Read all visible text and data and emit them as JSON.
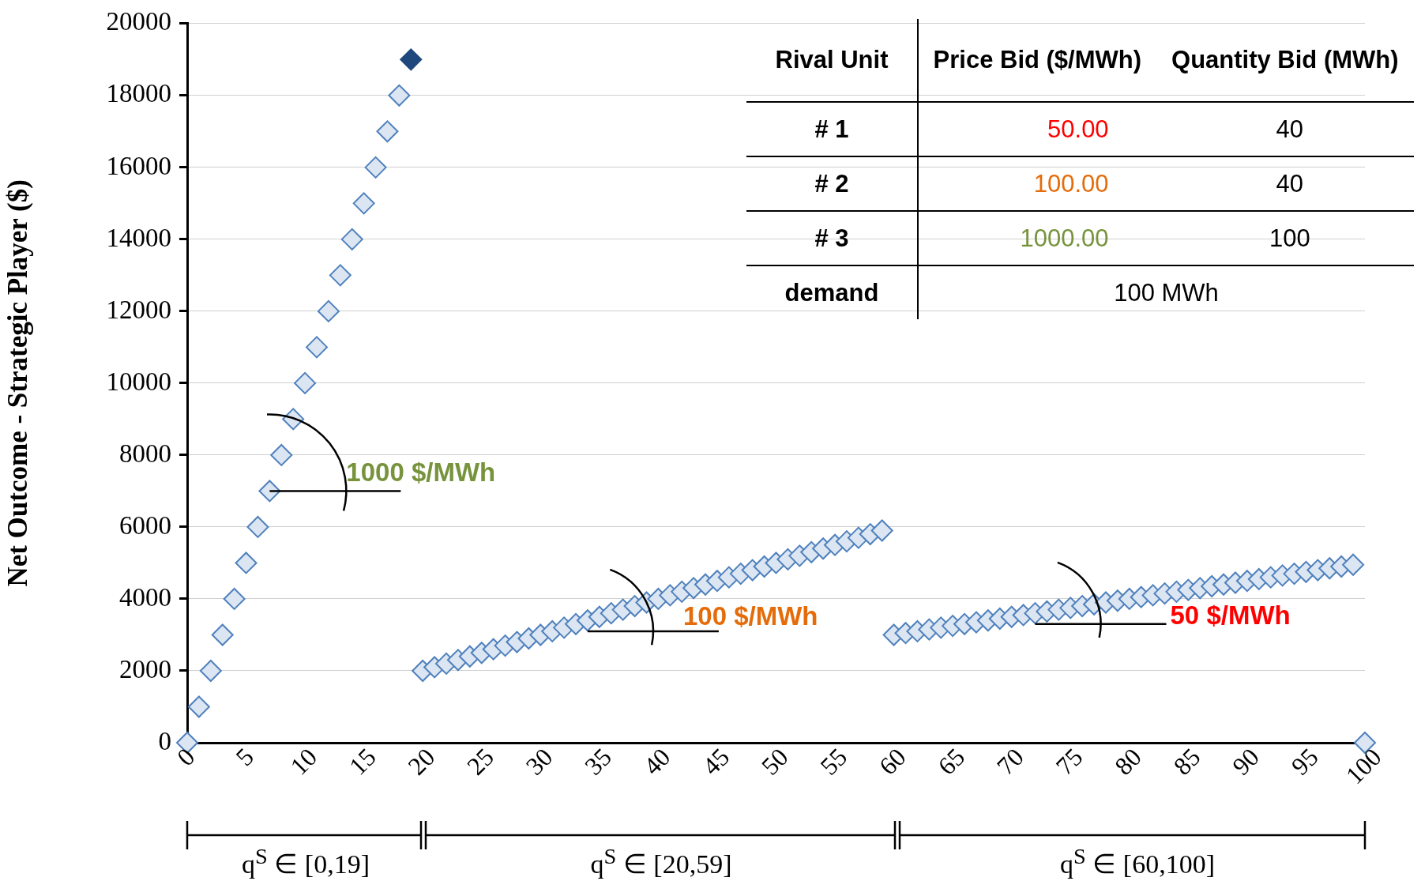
{
  "chart_data": {
    "type": "scatter",
    "ylabel": "Net Outcome - Strategic Player ($)",
    "xlim": [
      0,
      100
    ],
    "xticks": [
      0,
      5,
      10,
      15,
      20,
      25,
      30,
      35,
      40,
      45,
      50,
      55,
      60,
      65,
      70,
      75,
      80,
      85,
      90,
      95,
      100
    ],
    "ylim": [
      0,
      20000
    ],
    "yticks": [
      0,
      2000,
      4000,
      6000,
      8000,
      10000,
      12000,
      14000,
      16000,
      18000,
      20000
    ],
    "grid": "y",
    "legend": false,
    "marker": "diamond",
    "series": [
      {
        "color": "#dce6f2",
        "x": [
          0,
          1,
          2,
          3,
          4,
          5,
          6,
          7,
          8,
          9,
          10,
          11,
          12,
          13,
          14,
          15,
          16,
          17,
          18,
          20,
          21,
          22,
          23,
          24,
          25,
          26,
          27,
          28,
          29,
          30,
          31,
          32,
          33,
          34,
          35,
          36,
          37,
          38,
          39,
          40,
          41,
          42,
          43,
          44,
          45,
          46,
          47,
          48,
          49,
          50,
          51,
          52,
          53,
          54,
          55,
          56,
          57,
          58,
          59,
          60,
          61,
          62,
          63,
          64,
          65,
          66,
          67,
          68,
          69,
          70,
          71,
          72,
          73,
          74,
          75,
          76,
          77,
          78,
          79,
          80,
          81,
          82,
          83,
          84,
          85,
          86,
          87,
          88,
          89,
          90,
          91,
          92,
          93,
          94,
          95,
          96,
          97,
          98,
          99,
          100
        ],
        "values": [
          0,
          1000,
          2000,
          3000,
          4000,
          5000,
          6000,
          7000,
          8000,
          9000,
          10000,
          11000,
          12000,
          13000,
          14000,
          15000,
          16000,
          17000,
          18000,
          2000,
          2100,
          2200,
          2300,
          2400,
          2500,
          2600,
          2700,
          2800,
          2900,
          3000,
          3100,
          3200,
          3300,
          3400,
          3500,
          3600,
          3700,
          3800,
          3900,
          4000,
          4100,
          4200,
          4300,
          4400,
          4500,
          4600,
          4700,
          4800,
          4900,
          5000,
          5100,
          5200,
          5300,
          5400,
          5500,
          5600,
          5700,
          5800,
          5900,
          3000,
          3050,
          3100,
          3150,
          3200,
          3250,
          3300,
          3350,
          3400,
          3450,
          3500,
          3550,
          3600,
          3650,
          3700,
          3750,
          3800,
          3850,
          3900,
          3950,
          4000,
          4050,
          4100,
          4150,
          4200,
          4250,
          4300,
          4350,
          4400,
          4450,
          4500,
          4550,
          4600,
          4650,
          4700,
          4750,
          4800,
          4850,
          4900,
          4950,
          0
        ]
      },
      {
        "color": "#1f497d",
        "x": [
          19
        ],
        "values": [
          19000
        ]
      }
    ],
    "annotations": [
      "Rival Unit",
      "Price Bid ($/MWh)",
      "Quantity Bid (MWh)",
      "# 1",
      "50.00",
      "40",
      "# 2",
      "100.00",
      "40",
      "# 3",
      "1000.00",
      "100",
      "demand",
      "100 MWh",
      {
        "text": "1000 $/MWh",
        "x": 7,
        "y": 7000
      },
      {
        "text": "100 $/MWh",
        "x": 34,
        "y": 3100
      },
      {
        "text": "50 $/MWh",
        "x": 72,
        "y": 3300
      },
      "q$^{S}$ ∈ [0,19]",
      "q$^{S}$ ∈ [20,59]",
      "q$^{S}$ ∈ [60,100]"
    ]
  }
}
